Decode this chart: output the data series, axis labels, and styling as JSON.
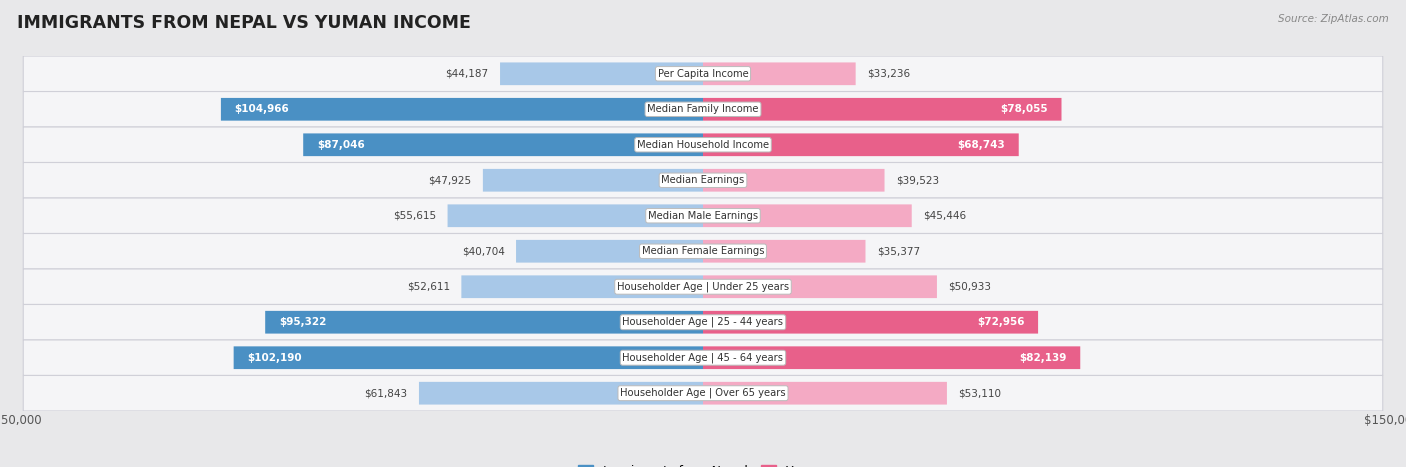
{
  "title": "IMMIGRANTS FROM NEPAL VS YUMAN INCOME",
  "source": "Source: ZipAtlas.com",
  "categories": [
    "Per Capita Income",
    "Median Family Income",
    "Median Household Income",
    "Median Earnings",
    "Median Male Earnings",
    "Median Female Earnings",
    "Householder Age | Under 25 years",
    "Householder Age | 25 - 44 years",
    "Householder Age | 45 - 64 years",
    "Householder Age | Over 65 years"
  ],
  "nepal_values": [
    44187,
    104966,
    87046,
    47925,
    55615,
    40704,
    52611,
    95322,
    102190,
    61843
  ],
  "yuman_values": [
    33236,
    78055,
    68743,
    39523,
    45446,
    35377,
    50933,
    72956,
    82139,
    53110
  ],
  "nepal_labels": [
    "$44,187",
    "$104,966",
    "$87,046",
    "$47,925",
    "$55,615",
    "$40,704",
    "$52,611",
    "$95,322",
    "$102,190",
    "$61,843"
  ],
  "yuman_labels": [
    "$33,236",
    "$78,055",
    "$68,743",
    "$39,523",
    "$45,446",
    "$35,377",
    "$50,933",
    "$72,956",
    "$82,139",
    "$53,110"
  ],
  "nepal_color_full": "#4a90c4",
  "nepal_color_light": "#a8c8e8",
  "yuman_color_full": "#e8608a",
  "yuman_color_light": "#f4aac4",
  "max_val": 150000,
  "legend_nepal": "Immigrants from Nepal",
  "legend_yuman": "Yuman",
  "nepal_full_threshold": 80000,
  "yuman_full_threshold": 65000,
  "bg_color": "#e8e8ea",
  "row_color": "#f5f5f7",
  "row_edge_color": "#d0d0d8"
}
